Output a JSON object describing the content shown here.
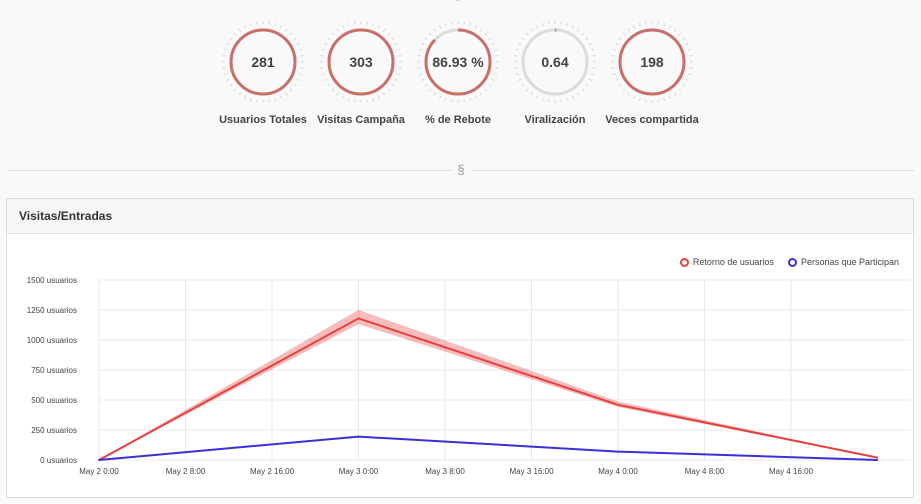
{
  "stats": [
    {
      "value": "281",
      "label": "Usuarios Totales",
      "fraction": 1.0,
      "color": "#c9706a"
    },
    {
      "value": "303",
      "label": "Visitas Campaña",
      "fraction": 1.0,
      "color": "#c9706a"
    },
    {
      "value": "86.93 %",
      "label": "% de Rebote",
      "fraction": 0.87,
      "color": "#c9706a"
    },
    {
      "value": "0.64",
      "label": "Viralización",
      "fraction": 0.0064,
      "color": "#c9706a"
    },
    {
      "value": "198",
      "label": "Veces compartida",
      "fraction": 1.0,
      "color": "#c9706a"
    }
  ],
  "divider_glyph": "§",
  "top_glyph": "§",
  "panel": {
    "title": "Visitas/Entradas"
  },
  "chart_data": {
    "type": "line",
    "ylim": [
      0,
      1500
    ],
    "yticks": [
      "0 usuarios",
      "250 usuarios",
      "500 usuarios",
      "750 usuarios",
      "1000 usuarios",
      "1250 usuarios",
      "1500 usuarios"
    ],
    "xticks": [
      "May 2 0:00",
      "May 2 8:00",
      "May 2 16:00",
      "May 3 0:00",
      "May 3 8:00",
      "May 3 16:00",
      "May 4 0:00",
      "May 4 8:00",
      "May 4 16:00"
    ],
    "series": [
      {
        "name": "Retorno de usuarios",
        "color": "#e8403f",
        "x": [
          "May 2 0:00",
          "May 3 0:00",
          "May 4 0:00",
          "May 5 0:00"
        ],
        "values": [
          0,
          1180,
          460,
          20
        ]
      },
      {
        "name": "Personas que Participan",
        "color": "#3b2fd6",
        "x": [
          "May 2 0:00",
          "May 3 0:00",
          "May 4 0:00",
          "May 5 0:00"
        ],
        "values": [
          0,
          195,
          70,
          0
        ]
      }
    ],
    "grid": true,
    "legend": "top-right"
  }
}
